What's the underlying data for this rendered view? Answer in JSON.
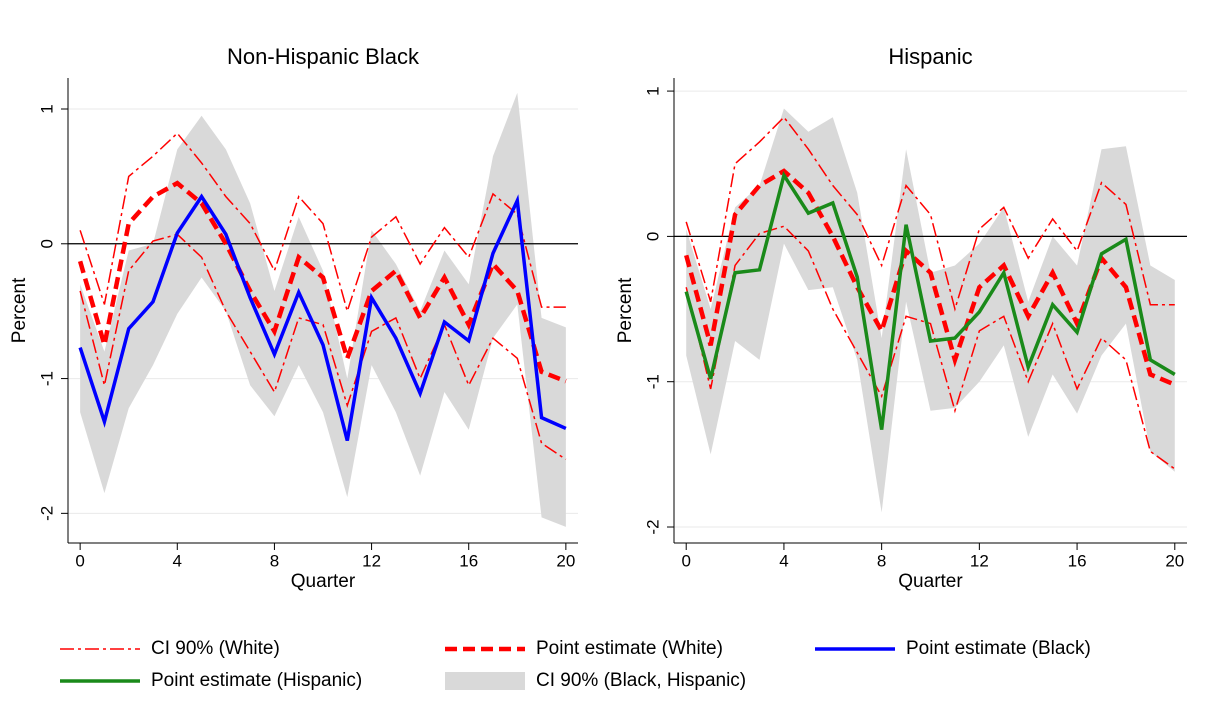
{
  "chart_data": [
    {
      "type": "line",
      "title": "Non-Hispanic Black",
      "xlabel": "Quarter",
      "ylabel": "Percent",
      "x": [
        0,
        1,
        2,
        3,
        4,
        5,
        6,
        7,
        8,
        9,
        10,
        11,
        12,
        13,
        14,
        15,
        16,
        17,
        18,
        19,
        20
      ],
      "xlim": [
        -0.5,
        20.5
      ],
      "xticks": [
        0,
        4,
        8,
        12,
        16,
        20
      ],
      "ylim": [
        -2.22,
        1.23
      ],
      "yticks": [
        -2,
        -1,
        0,
        1
      ],
      "grid": true,
      "refline": 0,
      "series": [
        {
          "name": "CI 90% (Black, Hispanic)",
          "style": "band",
          "color": "#d9d9d9",
          "upper": [
            -0.3,
            -0.8,
            -0.05,
            0.0,
            0.7,
            0.95,
            0.7,
            0.3,
            -0.35,
            0.2,
            -0.2,
            -1.0,
            0.1,
            -0.15,
            -0.5,
            -0.05,
            -0.3,
            0.65,
            1.12,
            -0.55,
            -0.62
          ],
          "lower": [
            -1.25,
            -1.85,
            -1.22,
            -0.9,
            -0.52,
            -0.25,
            -0.5,
            -1.05,
            -1.28,
            -0.9,
            -1.25,
            -1.88,
            -0.9,
            -1.25,
            -1.72,
            -1.1,
            -1.38,
            -0.7,
            -0.45,
            -2.03,
            -2.1
          ]
        },
        {
          "name": "CI 90% (White)",
          "style": "dashdot",
          "color": "#ff0000",
          "upper": [
            0.1,
            -0.45,
            0.5,
            0.65,
            0.82,
            0.6,
            0.35,
            0.15,
            -0.2,
            0.35,
            0.15,
            -0.5,
            0.05,
            0.2,
            -0.15,
            0.12,
            -0.1,
            0.37,
            0.22,
            -0.47,
            -0.47
          ],
          "lower": [
            -0.35,
            -1.05,
            -0.2,
            0.02,
            0.07,
            -0.1,
            -0.5,
            -0.8,
            -1.1,
            -0.55,
            -0.6,
            -1.2,
            -0.65,
            -0.55,
            -1.0,
            -0.6,
            -1.05,
            -0.7,
            -0.85,
            -1.48,
            -1.6
          ]
        },
        {
          "name": "Point estimate (White)",
          "style": "dash",
          "color": "#ff0000",
          "values": [
            -0.13,
            -0.75,
            0.15,
            0.35,
            0.45,
            0.3,
            0.0,
            -0.35,
            -0.65,
            -0.1,
            -0.25,
            -0.85,
            -0.35,
            -0.2,
            -0.55,
            -0.25,
            -0.6,
            -0.15,
            -0.35,
            -0.95,
            -1.02
          ]
        },
        {
          "name": "Point estimate (Black)",
          "style": "solid",
          "color": "#0000ff",
          "values": [
            -0.77,
            -1.32,
            -0.63,
            -0.43,
            0.08,
            0.35,
            0.07,
            -0.4,
            -0.82,
            -0.36,
            -0.75,
            -1.46,
            -0.4,
            -0.7,
            -1.11,
            -0.58,
            -0.72,
            -0.07,
            0.32,
            -1.29,
            -1.37
          ]
        }
      ]
    },
    {
      "type": "line",
      "title": "Hispanic",
      "xlabel": "Quarter",
      "ylabel": "Percent",
      "x": [
        0,
        1,
        2,
        3,
        4,
        5,
        6,
        7,
        8,
        9,
        10,
        11,
        12,
        13,
        14,
        15,
        16,
        17,
        18,
        19,
        20
      ],
      "xlim": [
        -0.5,
        20.5
      ],
      "xticks": [
        0,
        4,
        8,
        12,
        16,
        20
      ],
      "ylim": [
        -2.11,
        1.09
      ],
      "yticks": [
        -2,
        -1,
        0,
        1
      ],
      "grid": true,
      "refline": 0,
      "series": [
        {
          "name": "CI 90% (Black, Hispanic)",
          "style": "band",
          "color": "#d9d9d9",
          "upper": [
            0.05,
            -0.5,
            0.2,
            0.35,
            0.88,
            0.72,
            0.82,
            0.3,
            -0.7,
            0.6,
            -0.25,
            -0.2,
            -0.05,
            0.2,
            -0.45,
            0.0,
            -0.2,
            0.6,
            0.62,
            -0.2,
            -0.3
          ],
          "lower": [
            -0.82,
            -1.5,
            -0.72,
            -0.85,
            -0.05,
            -0.37,
            -0.35,
            -0.85,
            -1.9,
            -0.45,
            -1.2,
            -1.18,
            -1.0,
            -0.75,
            -1.38,
            -0.95,
            -1.22,
            -0.82,
            -0.6,
            -1.48,
            -1.62
          ]
        },
        {
          "name": "CI 90% (White)",
          "style": "dashdot",
          "color": "#ff0000",
          "upper": [
            0.1,
            -0.45,
            0.5,
            0.65,
            0.82,
            0.6,
            0.35,
            0.15,
            -0.2,
            0.35,
            0.15,
            -0.5,
            0.05,
            0.2,
            -0.15,
            0.12,
            -0.1,
            0.37,
            0.22,
            -0.47,
            -0.47
          ],
          "lower": [
            -0.35,
            -1.05,
            -0.2,
            0.02,
            0.07,
            -0.1,
            -0.5,
            -0.8,
            -1.1,
            -0.55,
            -0.6,
            -1.2,
            -0.65,
            -0.55,
            -1.0,
            -0.6,
            -1.05,
            -0.7,
            -0.85,
            -1.48,
            -1.6
          ]
        },
        {
          "name": "Point estimate (White)",
          "style": "dash",
          "color": "#ff0000",
          "values": [
            -0.13,
            -0.75,
            0.15,
            0.35,
            0.45,
            0.3,
            0.0,
            -0.35,
            -0.65,
            -0.1,
            -0.25,
            -0.85,
            -0.35,
            -0.2,
            -0.55,
            -0.25,
            -0.6,
            -0.15,
            -0.35,
            -0.95,
            -1.02
          ]
        },
        {
          "name": "Point estimate (Hispanic)",
          "style": "solid",
          "color": "#1a8a1a",
          "values": [
            -0.38,
            -0.98,
            -0.25,
            -0.23,
            0.42,
            0.16,
            0.23,
            -0.28,
            -1.33,
            0.08,
            -0.72,
            -0.7,
            -0.52,
            -0.25,
            -0.9,
            -0.47,
            -0.66,
            -0.12,
            -0.02,
            -0.85,
            -0.95
          ]
        }
      ]
    }
  ]
}
